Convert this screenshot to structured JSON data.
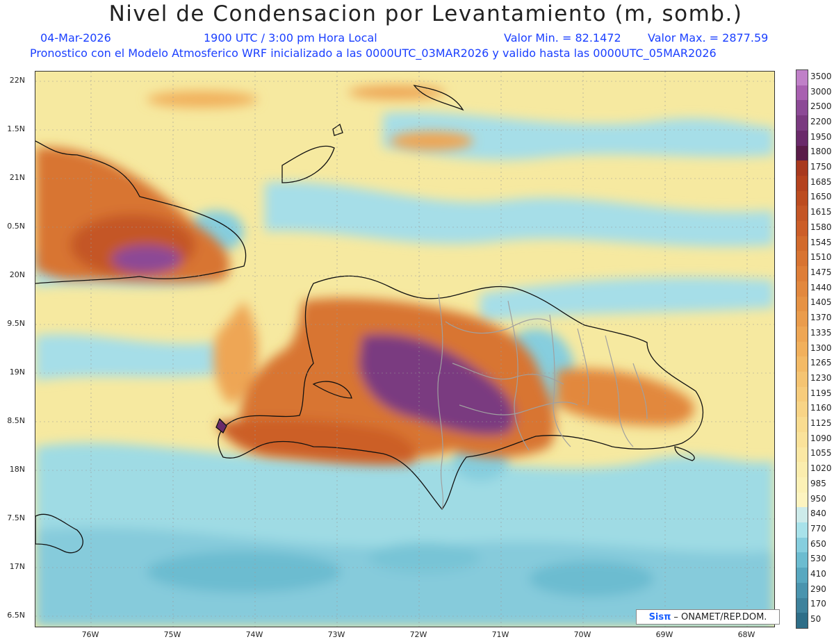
{
  "header": {
    "title": "Nivel de Condensacion por Levantamiento (m, somb.)",
    "date": "04-Mar-2026",
    "time": "1900 UTC / 3:00 pm Hora Local",
    "min_value": "Valor Min. = 82.1472",
    "max_value": "Valor Max. = 2877.59",
    "model_line": "Pronostico con el Modelo Atmosferico WRF inicializado a las 0000UTC_03MAR2026 y valido hasta las  0000UTC_05MAR2026"
  },
  "map": {
    "lat_labels": [
      "22N",
      "1.5N",
      "21N",
      "0.5N",
      "20N",
      "9.5N",
      "19N",
      "8.5N",
      "18N",
      "7.5N",
      "17N",
      "6.5N"
    ],
    "lon_labels": [
      "76W",
      "75W",
      "74W",
      "73W",
      "72W",
      "71W",
      "70W",
      "69W",
      "68W"
    ]
  },
  "legend": {
    "labels": [
      "3500",
      "3000",
      "2500",
      "2200",
      "1950",
      "1800",
      "1750",
      "1685",
      "1650",
      "1615",
      "1580",
      "1545",
      "1510",
      "1475",
      "1440",
      "1405",
      "1370",
      "1335",
      "1300",
      "1265",
      "1230",
      "1195",
      "1160",
      "1125",
      "1090",
      "1055",
      "1020",
      "985",
      "950",
      "840",
      "770",
      "650",
      "530",
      "410",
      "290",
      "170",
      "50"
    ],
    "colors": [
      "#c080c8",
      "#a860b0",
      "#8c4a96",
      "#7a3a80",
      "#6a2a6a",
      "#5a1c48",
      "#a8391e",
      "#b4421e",
      "#bc4c20",
      "#c45626",
      "#cc5e28",
      "#d26a2c",
      "#d87432",
      "#de7e38",
      "#e2883e",
      "#e69244",
      "#ea9c4c",
      "#eea654",
      "#f1b05c",
      "#f3ba66",
      "#f5c472",
      "#f7cc7c",
      "#f8d486",
      "#f9dc90",
      "#fae29a",
      "#fbe8a4",
      "#fbedae",
      "#fcf1b6",
      "#fdf4c0",
      "#cdebea",
      "#a8e2ea",
      "#86cede",
      "#6cbcd0",
      "#58a8c0",
      "#4a94ae",
      "#3e829c",
      "#2e6e88"
    ]
  },
  "credit": {
    "brand": "Sisπ",
    "text": "– ONAMET/REP.DOM."
  }
}
